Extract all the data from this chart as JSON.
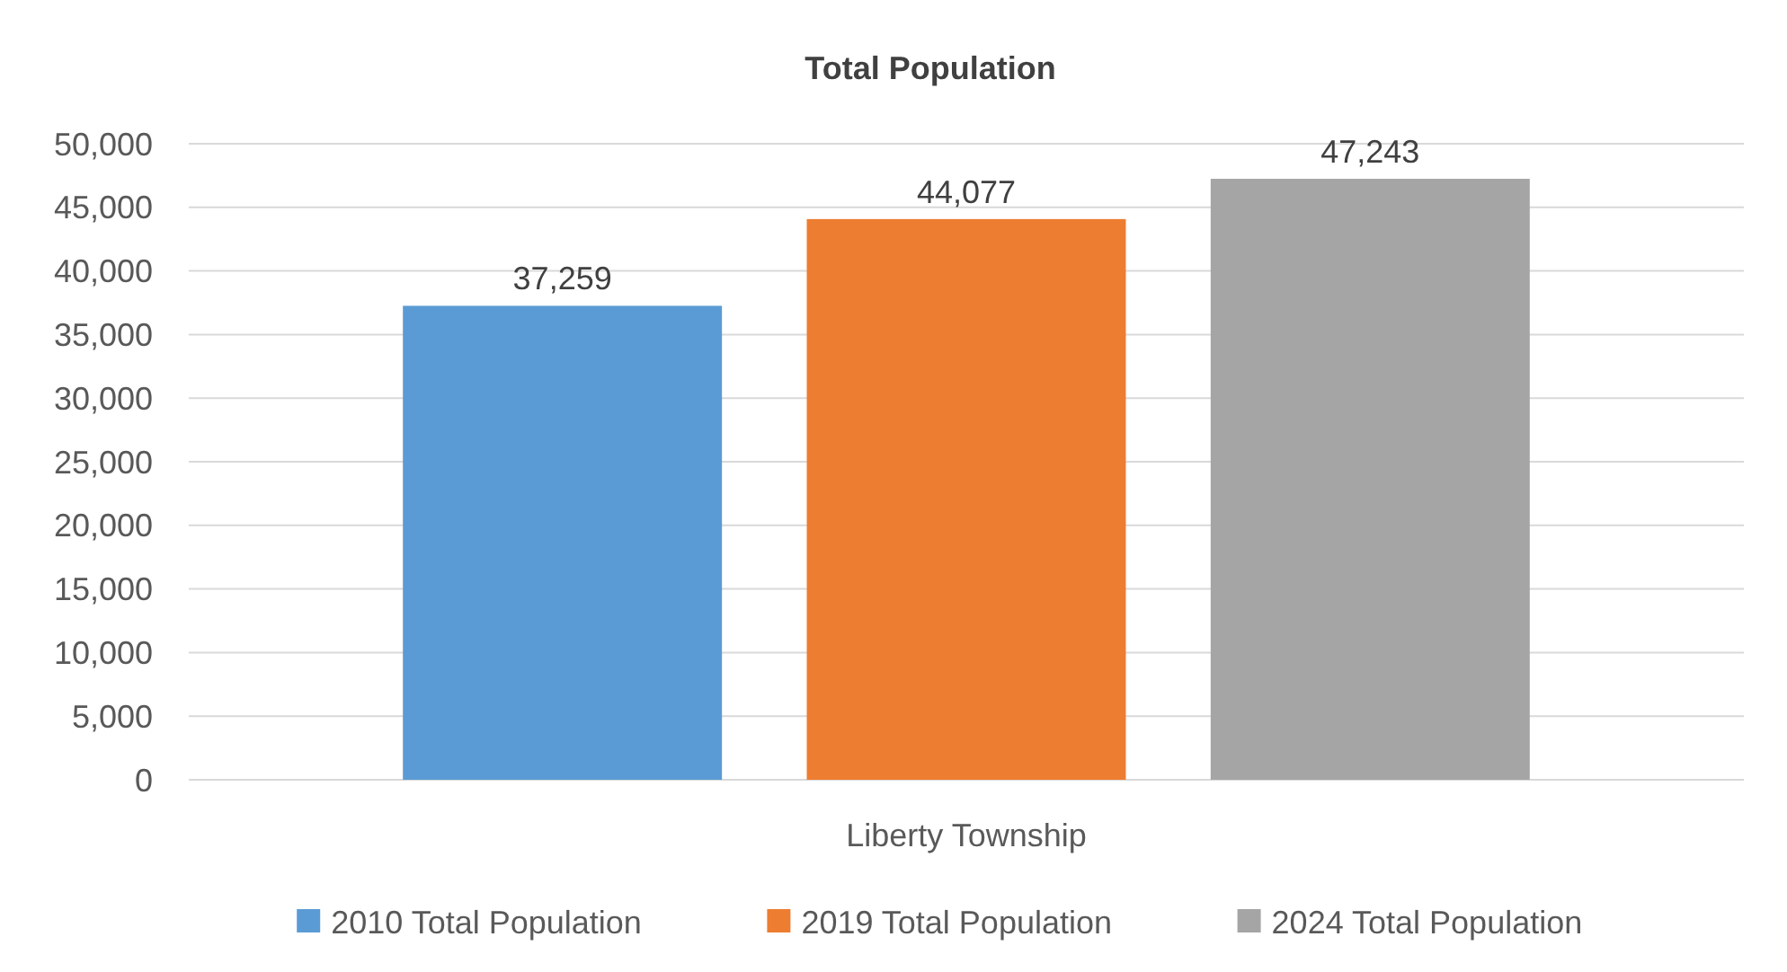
{
  "chart_data": {
    "type": "bar",
    "title": "Total Population",
    "categories": [
      "Liberty Township"
    ],
    "series": [
      {
        "name": "2010 Total Population",
        "color": "#5b9bd5",
        "values": [
          37259
        ],
        "value_labels": [
          "37,259"
        ]
      },
      {
        "name": "2019 Total Population",
        "color": "#ed7d31",
        "values": [
          44077
        ],
        "value_labels": [
          "44,077"
        ]
      },
      {
        "name": "2024 Total Population",
        "color": "#a5a5a5",
        "values": [
          47243
        ],
        "value_labels": [
          "47,243"
        ]
      }
    ],
    "ylim": [
      0,
      50000
    ],
    "yticks": [
      {
        "value": 0,
        "label": "0"
      },
      {
        "value": 5000,
        "label": "5,000"
      },
      {
        "value": 10000,
        "label": "10,000"
      },
      {
        "value": 15000,
        "label": "15,000"
      },
      {
        "value": 20000,
        "label": "20,000"
      },
      {
        "value": 25000,
        "label": "25,000"
      },
      {
        "value": 30000,
        "label": "30,000"
      },
      {
        "value": 35000,
        "label": "35,000"
      },
      {
        "value": 40000,
        "label": "40,000"
      },
      {
        "value": 45000,
        "label": "45,000"
      },
      {
        "value": 50000,
        "label": "50,000"
      }
    ],
    "grid": "y",
    "legend": "bottom"
  }
}
